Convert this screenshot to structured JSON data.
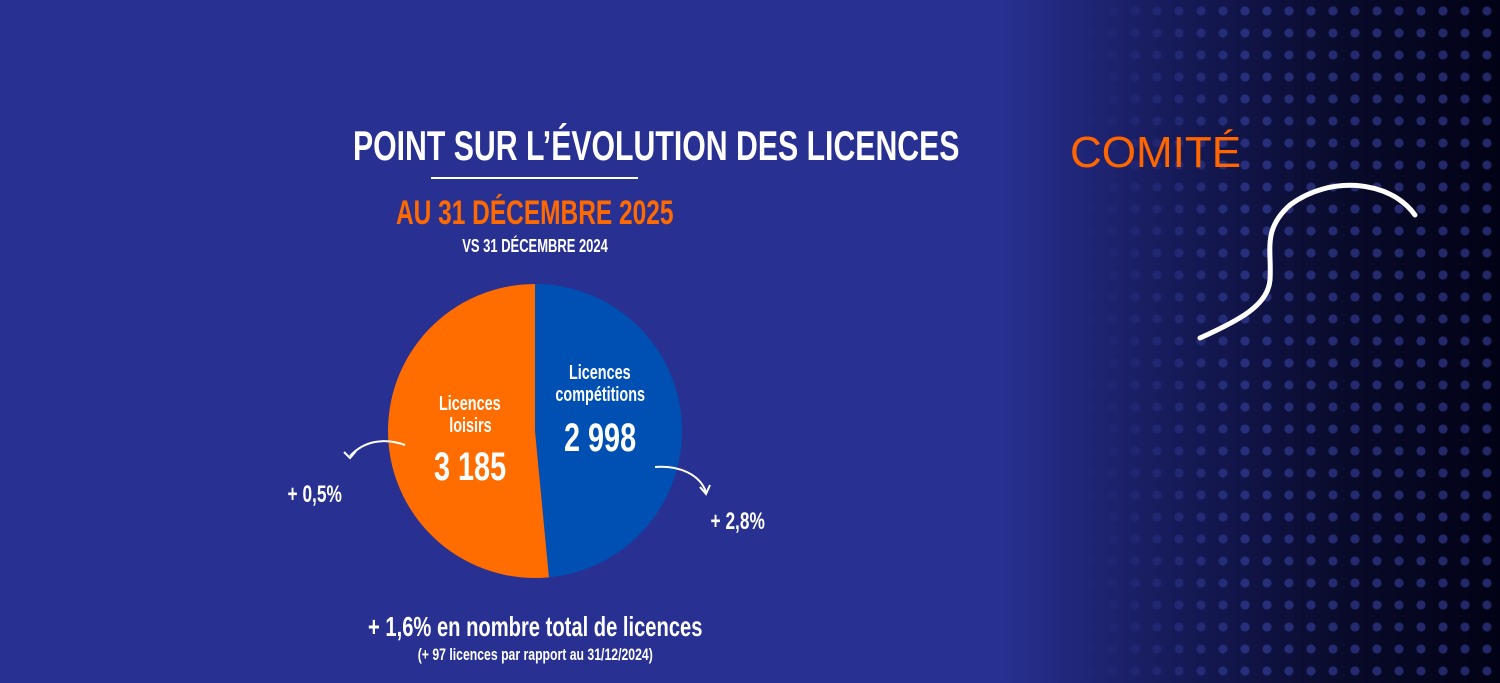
{
  "header": {
    "title": "POINT SUR L’ÉVOLUTION DES LICENCES",
    "subtitle": "AU 31 DÉCEMBRE 2025",
    "comparison": "VS 31 DÉCEMBRE 2024"
  },
  "brand": {
    "label": "COMITÉ"
  },
  "chart_data": {
    "type": "pie",
    "title": "POINT SUR L’ÉVOLUTION DES LICENCES",
    "slices": [
      {
        "label_line1": "Licences",
        "label_line2": "compétitions",
        "value": 2998,
        "value_text": "2 998",
        "change": "+ 2,8%",
        "color": "#0050b4"
      },
      {
        "label_line1": "Licences",
        "label_line2": "loisirs",
        "value": 3185,
        "value_text": "3 185",
        "change": "+ 0,5%",
        "color": "#ff6d00"
      }
    ]
  },
  "footer": {
    "total_change": "+ 1,6% en nombre total de licences",
    "detail": "(+ 97 licences par rapport au 31/12/2024)"
  }
}
